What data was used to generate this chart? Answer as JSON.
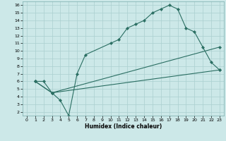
{
  "title": "",
  "xlabel": "Humidex (Indice chaleur)",
  "bg_color": "#cce8e8",
  "line_color": "#2a6e62",
  "xlim": [
    -0.5,
    23.5
  ],
  "ylim": [
    1.5,
    16.5
  ],
  "xticks": [
    0,
    1,
    2,
    3,
    4,
    5,
    6,
    7,
    8,
    9,
    10,
    11,
    12,
    13,
    14,
    15,
    16,
    17,
    18,
    19,
    20,
    21,
    22,
    23
  ],
  "yticks": [
    2,
    3,
    4,
    5,
    6,
    7,
    8,
    9,
    10,
    11,
    12,
    13,
    14,
    15,
    16
  ],
  "line1_x": [
    1,
    2,
    3,
    4,
    5,
    6,
    7,
    10,
    11,
    12,
    13,
    14,
    15,
    16,
    17,
    18,
    19,
    20,
    21,
    22,
    23
  ],
  "line1_y": [
    6,
    6,
    4.5,
    3.5,
    1.5,
    7,
    9.5,
    11,
    11.5,
    13,
    13.5,
    14,
    15,
    15.5,
    16,
    15.5,
    13,
    12.5,
    10.5,
    8.5,
    7.5
  ],
  "line2_x": [
    1,
    3,
    23
  ],
  "line2_y": [
    6,
    4.5,
    7.5
  ],
  "line3_x": [
    1,
    3,
    23
  ],
  "line3_y": [
    6,
    4.5,
    10.5
  ],
  "marker": "D",
  "markersize": 2.2,
  "linewidth": 0.8,
  "tick_fontsize": 4.5,
  "xlabel_fontsize": 5.5,
  "grid_color": "#aacfcf",
  "spine_color": "#7aacac"
}
